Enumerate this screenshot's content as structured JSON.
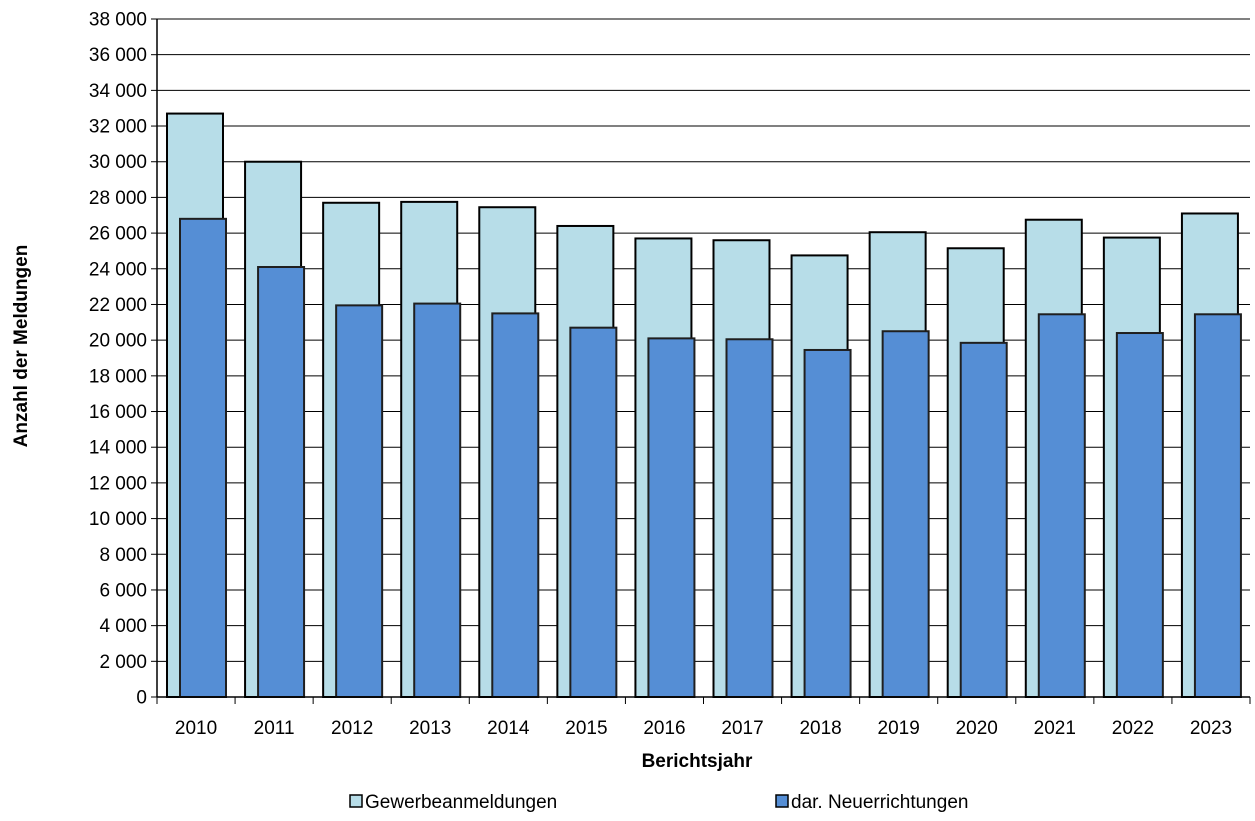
{
  "chart_data": {
    "type": "bar",
    "title": "",
    "xlabel": "Berichtsjahr",
    "ylabel": "Anzahl der Meldungen",
    "ylim": [
      0,
      38000
    ],
    "ytick_step": 2000,
    "ytick_labels": [
      "0",
      "2 000",
      "4 000",
      "6 000",
      "8 000",
      "10 000",
      "12 000",
      "14 000",
      "16 000",
      "18 000",
      "20 000",
      "22 000",
      "24 000",
      "26 000",
      "28 000",
      "30 000",
      "32 000",
      "34 000",
      "36 000",
      "38 000"
    ],
    "grid": true,
    "legend_position": "bottom",
    "categories": [
      "2010",
      "2011",
      "2012",
      "2013",
      "2014",
      "2015",
      "2016",
      "2017",
      "2018",
      "2019",
      "2020",
      "2021",
      "2022",
      "2023"
    ],
    "series": [
      {
        "name": "Gewerbeanmeldungen",
        "color": "#b7dde8",
        "values": [
          32700,
          30000,
          27700,
          27750,
          27450,
          26400,
          25700,
          25600,
          24750,
          26050,
          25150,
          26750,
          25750,
          27100
        ]
      },
      {
        "name": "dar. Neuerrichtungen",
        "color": "#558ed5",
        "values": [
          26800,
          24100,
          21950,
          22050,
          21500,
          20700,
          20100,
          20050,
          19450,
          20500,
          19850,
          21450,
          20400,
          21450
        ]
      }
    ]
  }
}
